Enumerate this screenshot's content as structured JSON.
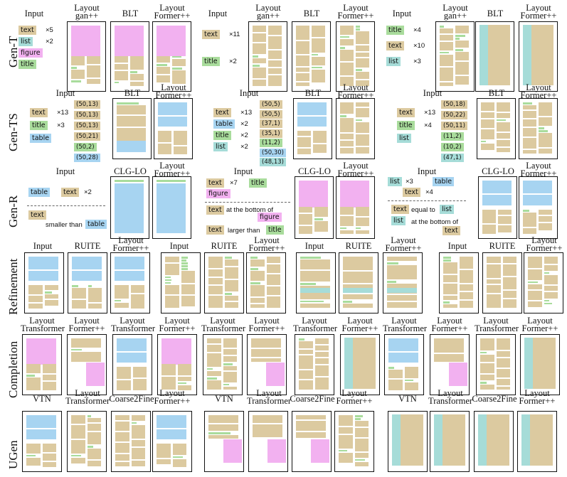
{
  "colors": {
    "text": "#dccaa0",
    "text_dark": "#c8b27c",
    "title": "#a9dc9c",
    "list": "#a6dcd8",
    "table": "#a7d4f1",
    "figure": "#f2b1f0",
    "frame": "#111111"
  },
  "rows": {
    "gen_t": "Gen-T",
    "gen_ts": "Gen-TS",
    "gen_r": "Gen-R",
    "refinement": "Refinement",
    "completion": "Completion",
    "ugen": "UGen"
  },
  "headers": {
    "input": "Input",
    "layoutgan_l1": "Layout",
    "layoutgan_l2": "gan++",
    "blt": "BLT",
    "lf_l1": "Layout",
    "lf_l2": "Former++",
    "clglo": "CLG-LO",
    "ruite": "RUITE",
    "lt_l1": "Layout",
    "lt_l2": "Transformer",
    "vtn": "VTN",
    "c2f": "Coarse2Fine"
  },
  "gen_t_inputs": [
    {
      "tags": [
        {
          "label": "text",
          "type": "text",
          "count": "×5"
        },
        {
          "label": "list",
          "type": "list",
          "count": "×2"
        },
        {
          "label": "figure",
          "type": "figure",
          "count": ""
        },
        {
          "label": "title",
          "type": "title",
          "count": ""
        }
      ]
    },
    {
      "tags": [
        {
          "label": "text",
          "type": "text",
          "count": "×11"
        },
        {
          "label": "title",
          "type": "title",
          "count": "×2"
        }
      ]
    },
    {
      "tags": [
        {
          "label": "title",
          "type": "title",
          "count": "×4"
        },
        {
          "label": "text",
          "type": "text",
          "count": "×10"
        },
        {
          "label": "list",
          "type": "list",
          "count": "×3"
        }
      ]
    }
  ],
  "gen_ts_inputs": [
    {
      "tags": [
        {
          "label": "text",
          "type": "text",
          "count": "×13"
        },
        {
          "label": "title",
          "type": "title",
          "count": "×3"
        },
        {
          "label": "table",
          "type": "table",
          "count": ""
        }
      ],
      "sizes": [
        {
          "v": "(50,13)",
          "type": "text"
        },
        {
          "v": "(50,13)",
          "type": "text"
        },
        {
          "v": "(50,13)",
          "type": "text"
        },
        {
          "v": "(50,21)",
          "type": "text"
        },
        {
          "v": "(50,2)",
          "type": "title"
        },
        {
          "v": "(50,28)",
          "type": "table"
        }
      ]
    },
    {
      "tags": [
        {
          "label": "text",
          "type": "text",
          "count": "×13"
        },
        {
          "label": "table",
          "type": "table",
          "count": "×2"
        },
        {
          "label": "title",
          "type": "title",
          "count": "×2"
        },
        {
          "label": "list",
          "type": "list",
          "count": "×2"
        }
      ],
      "sizes": [
        {
          "v": "(50,5)",
          "type": "text"
        },
        {
          "v": "(50,5)",
          "type": "text"
        },
        {
          "v": "(37,1)",
          "type": "text"
        },
        {
          "v": "(35,1)",
          "type": "text"
        },
        {
          "v": "(11,2)",
          "type": "title"
        },
        {
          "v": "(50,30)",
          "type": "table"
        },
        {
          "v": "(48,13)",
          "type": "list"
        }
      ]
    },
    {
      "tags": [
        {
          "label": "text",
          "type": "text",
          "count": "×13"
        },
        {
          "label": "title",
          "type": "title",
          "count": "×4"
        },
        {
          "label": "list",
          "type": "list",
          "count": ""
        }
      ],
      "sizes": [
        {
          "v": "(50,18)",
          "type": "text"
        },
        {
          "v": "(50,22)",
          "type": "text"
        },
        {
          "v": "(50,11)",
          "type": "text"
        },
        {
          "v": "(11,2)",
          "type": "title"
        },
        {
          "v": "(10,2)",
          "type": "title"
        },
        {
          "v": "(47,1)",
          "type": "list"
        }
      ]
    }
  ],
  "gen_r_inputs": [
    {
      "table": "table",
      "text": "text",
      "count": "×2",
      "rel_a": "text",
      "rel_mid": "smaller than",
      "rel_b": "table"
    },
    {
      "text": "text",
      "count": "×7",
      "title": "title",
      "figure": "figure",
      "r1a": "text",
      "r1mid": "at the bottom of",
      "r1b": "figure",
      "r2a": "text",
      "r2mid": "larger than",
      "r2b": "title"
    },
    {
      "list": "list",
      "count": "×3",
      "table": "table",
      "text": "text",
      "count2": "×4",
      "r1a": "text",
      "r1mid": "equal to",
      "r1b": "list",
      "r2a": "list",
      "r2mid": "at the bottom of",
      "r2b": "text"
    }
  ]
}
